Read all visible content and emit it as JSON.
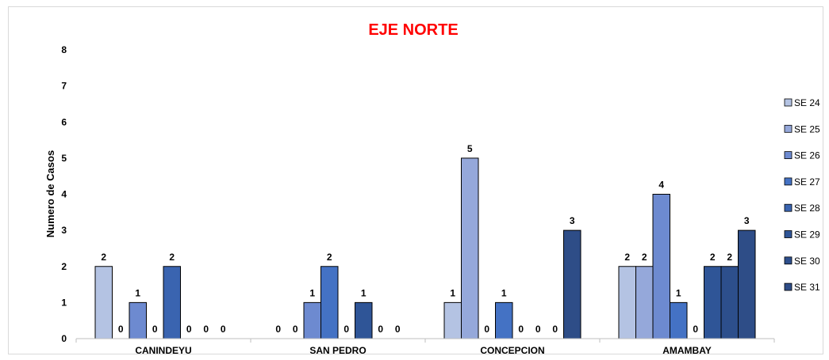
{
  "chart_data": {
    "type": "bar",
    "title": "EJE NORTE",
    "title_color": "#ff0000",
    "ylabel": "Numero de Casos",
    "xlabel": "",
    "ylim": [
      0,
      8
    ],
    "yticks": [
      0,
      1,
      2,
      3,
      4,
      5,
      6,
      7,
      8
    ],
    "grid": false,
    "legend_position": "right",
    "categories": [
      "CANINDEYU",
      "SAN PEDRO",
      "CONCEPCION",
      "AMAMBAY"
    ],
    "series": [
      {
        "name": "SE 24",
        "color": "#b4c3e3",
        "values": [
          2,
          0,
          1,
          2
        ]
      },
      {
        "name": "SE 25",
        "color": "#95a8da",
        "values": [
          0,
          0,
          5,
          2
        ]
      },
      {
        "name": "SE 26",
        "color": "#6d8ad0",
        "values": [
          1,
          1,
          0,
          4
        ]
      },
      {
        "name": "SE 27",
        "color": "#4472c4",
        "values": [
          0,
          2,
          1,
          1
        ]
      },
      {
        "name": "SE 28",
        "color": "#3a64b0",
        "values": [
          2,
          0,
          0,
          0
        ]
      },
      {
        "name": "SE 29",
        "color": "#2f5597",
        "values": [
          0,
          1,
          0,
          2
        ]
      },
      {
        "name": "SE 30",
        "color": "#2d4f8c",
        "values": [
          0,
          0,
          0,
          2
        ]
      },
      {
        "name": "SE 31",
        "color": "#2e4d87",
        "values": [
          0,
          0,
          3,
          3
        ]
      }
    ]
  }
}
